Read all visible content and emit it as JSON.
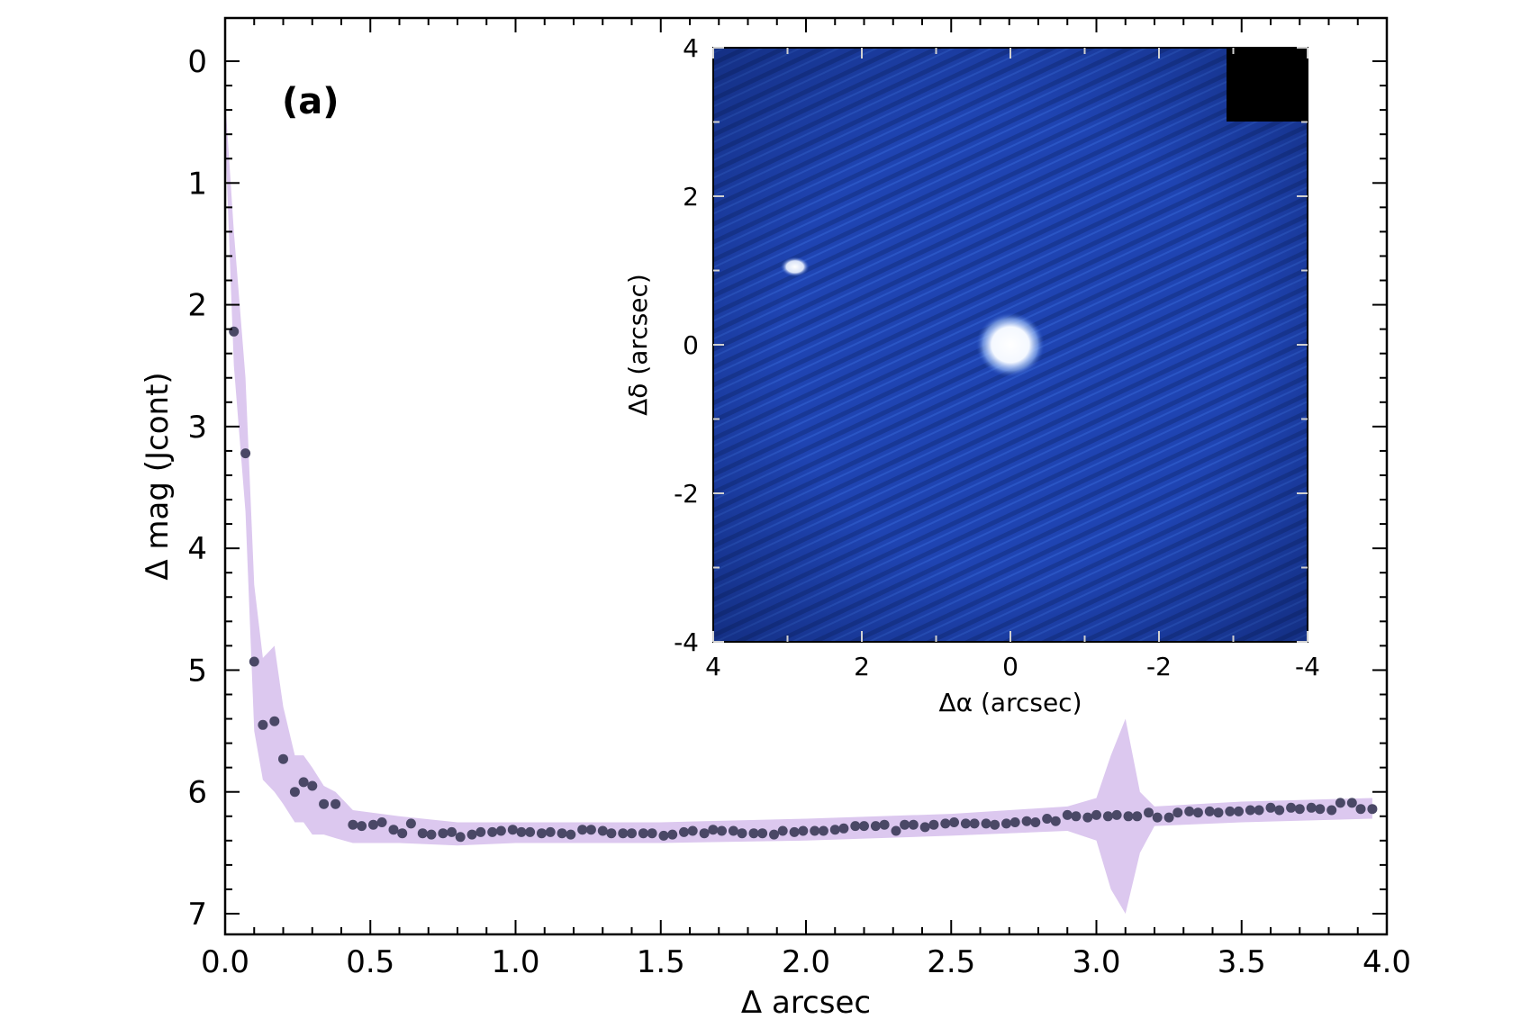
{
  "chart_data": {
    "type": "scatter",
    "panel_label": "(a)",
    "xlabel": "Δ arcsec",
    "ylabel": "Δ mag (Jcont)",
    "xlim": [
      0.0,
      4.0
    ],
    "ylim": [
      0,
      7.3
    ],
    "y_inverted": true,
    "x_ticks": [
      "0.0",
      "0.5",
      "1.0",
      "1.5",
      "2.0",
      "2.5",
      "3.0",
      "3.5",
      "4.0"
    ],
    "y_ticks": [
      "0",
      "1",
      "2",
      "3",
      "4",
      "5",
      "6",
      "7"
    ],
    "colors": {
      "points": "#4a4866",
      "band": "#dcc8ef",
      "inset_bg": "#1c3fae",
      "inset_star": "#ffffff"
    },
    "series": [
      {
        "x": [
          0.03,
          0.07,
          0.1,
          0.13,
          0.17,
          0.2,
          0.24,
          0.27,
          0.3,
          0.34,
          0.38,
          0.44,
          0.47,
          0.51,
          0.54,
          0.58,
          0.61,
          0.64,
          0.68,
          0.71,
          0.75,
          0.78,
          0.81,
          0.85,
          0.88,
          0.92,
          0.95,
          0.99,
          1.02,
          1.05,
          1.09,
          1.12,
          1.16,
          1.19,
          1.23,
          1.26,
          1.3,
          1.33,
          1.37,
          1.4,
          1.44,
          1.47,
          1.51,
          1.54,
          1.58,
          1.61,
          1.65,
          1.68,
          1.71,
          1.75,
          1.78,
          1.82,
          1.85,
          1.89,
          1.92,
          1.96,
          1.99,
          2.03,
          2.06,
          2.1,
          2.13,
          2.17,
          2.2,
          2.24,
          2.27,
          2.31,
          2.34,
          2.37,
          2.41,
          2.44,
          2.48,
          2.51,
          2.55,
          2.58,
          2.62,
          2.65,
          2.69,
          2.72,
          2.76,
          2.79,
          2.83,
          2.86,
          2.9,
          2.93,
          2.97,
          3.0,
          3.04,
          3.07,
          3.11,
          3.14,
          3.18,
          3.21,
          3.25,
          3.28,
          3.32,
          3.35,
          3.39,
          3.42,
          3.46,
          3.49,
          3.53,
          3.56,
          3.6,
          3.63,
          3.67,
          3.7,
          3.74,
          3.77,
          3.81,
          3.84,
          3.88,
          3.91,
          3.95
        ],
        "y": [
          2.22,
          3.22,
          4.93,
          5.45,
          5.42,
          5.73,
          6.0,
          5.92,
          5.95,
          6.1,
          6.1,
          6.27,
          6.28,
          6.27,
          6.25,
          6.31,
          6.34,
          6.26,
          6.34,
          6.35,
          6.34,
          6.33,
          6.37,
          6.35,
          6.33,
          6.33,
          6.32,
          6.31,
          6.33,
          6.33,
          6.34,
          6.33,
          6.34,
          6.35,
          6.31,
          6.31,
          6.32,
          6.34,
          6.34,
          6.34,
          6.34,
          6.34,
          6.36,
          6.35,
          6.33,
          6.32,
          6.34,
          6.31,
          6.32,
          6.32,
          6.34,
          6.34,
          6.34,
          6.35,
          6.32,
          6.33,
          6.32,
          6.32,
          6.32,
          6.31,
          6.3,
          6.28,
          6.28,
          6.28,
          6.27,
          6.32,
          6.27,
          6.27,
          6.29,
          6.27,
          6.26,
          6.25,
          6.26,
          6.26,
          6.26,
          6.27,
          6.26,
          6.25,
          6.24,
          6.25,
          6.22,
          6.24,
          6.19,
          6.2,
          6.21,
          6.19,
          6.2,
          6.19,
          6.2,
          6.2,
          6.17,
          6.21,
          6.21,
          6.17,
          6.16,
          6.17,
          6.16,
          6.17,
          6.16,
          6.16,
          6.15,
          6.15,
          6.13,
          6.15,
          6.13,
          6.14,
          6.13,
          6.14,
          6.15,
          6.09,
          6.09,
          6.14,
          6.14
        ]
      }
    ],
    "uncertainty_band": {
      "x": [
        0.0,
        0.03,
        0.07,
        0.1,
        0.13,
        0.17,
        0.2,
        0.24,
        0.27,
        0.3,
        0.34,
        0.38,
        0.44,
        0.6,
        0.8,
        1.0,
        1.5,
        2.0,
        2.5,
        2.9,
        3.0,
        3.05,
        3.1,
        3.15,
        3.2,
        3.5,
        3.95
      ],
      "lower": [
        0.3,
        1.4,
        2.6,
        4.3,
        4.9,
        4.8,
        5.3,
        5.7,
        5.7,
        5.8,
        5.95,
        6.0,
        6.15,
        6.2,
        6.25,
        6.25,
        6.25,
        6.22,
        6.18,
        6.12,
        6.05,
        5.7,
        5.4,
        6.0,
        6.12,
        6.08,
        6.05
      ],
      "upper": [
        0.6,
        2.5,
        3.7,
        5.5,
        5.9,
        6.0,
        6.1,
        6.25,
        6.25,
        6.35,
        6.35,
        6.38,
        6.42,
        6.42,
        6.44,
        6.42,
        6.42,
        6.4,
        6.36,
        6.32,
        6.4,
        6.8,
        7.0,
        6.5,
        6.28,
        6.25,
        6.22
      ]
    },
    "inset": {
      "xlabel": "Δα (arcsec)",
      "ylabel": "Δδ (arcsec)",
      "xlim": [
        4,
        -4
      ],
      "ylim": [
        -4,
        4
      ],
      "x_ticks": [
        "4",
        "2",
        "0",
        "-2",
        "-4"
      ],
      "y_ticks": [
        "4",
        "2",
        "0",
        "-2",
        "-4"
      ],
      "sources": [
        {
          "x": 0.0,
          "y": 0.0
        },
        {
          "x": 2.9,
          "y": 1.05
        }
      ]
    }
  }
}
